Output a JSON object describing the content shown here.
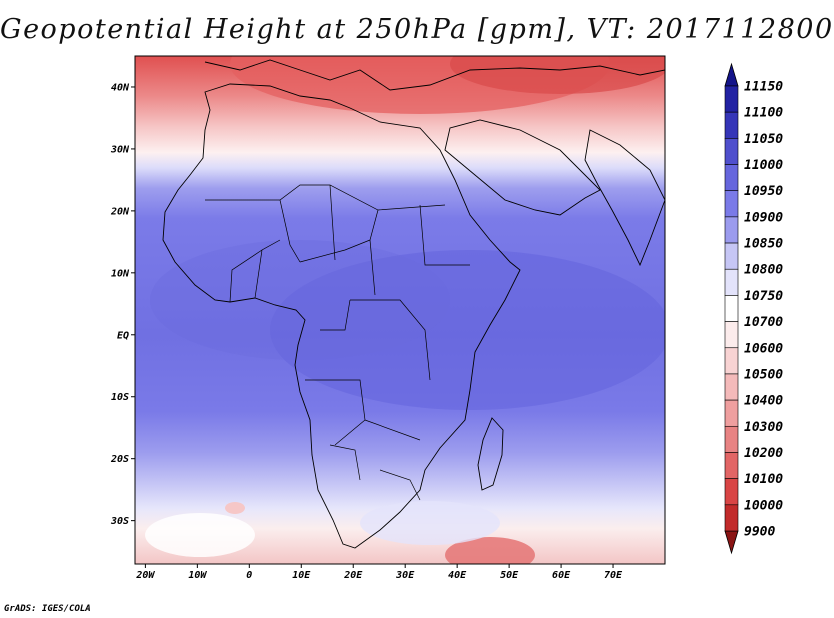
{
  "title": "Geopotential Height at 250hPa [gpm], VT: 2017112800",
  "credit": "GrADS: IGES/COLA",
  "map": {
    "variable": "Geopotential Height at 250hPa",
    "units": "gpm",
    "valid_time": "2017112800",
    "lon_range": [
      -22,
      80
    ],
    "lat_range": [
      -37,
      45
    ],
    "x_ticks": [
      {
        "lon": -20,
        "label": "20W"
      },
      {
        "lon": -10,
        "label": "10W"
      },
      {
        "lon": 0,
        "label": "0"
      },
      {
        "lon": 10,
        "label": "10E"
      },
      {
        "lon": 20,
        "label": "20E"
      },
      {
        "lon": 30,
        "label": "30E"
      },
      {
        "lon": 40,
        "label": "40E"
      },
      {
        "lon": 50,
        "label": "50E"
      },
      {
        "lon": 60,
        "label": "60E"
      },
      {
        "lon": 70,
        "label": "70E"
      }
    ],
    "y_ticks": [
      {
        "lat": 40,
        "label": "40N"
      },
      {
        "lat": 30,
        "label": "30N"
      },
      {
        "lat": 20,
        "label": "20N"
      },
      {
        "lat": 10,
        "label": "10N"
      },
      {
        "lat": 0,
        "label": "EQ"
      },
      {
        "lat": -10,
        "label": "10S"
      },
      {
        "lat": -20,
        "label": "20S"
      },
      {
        "lat": -30,
        "label": "30S"
      }
    ]
  },
  "colorbar": {
    "levels": [
      {
        "label": "9900",
        "color": "#a51c1c"
      },
      {
        "label": "10000",
        "color": "#c22b2b"
      },
      {
        "label": "10100",
        "color": "#d94545"
      },
      {
        "label": "10200",
        "color": "#e26565"
      },
      {
        "label": "10300",
        "color": "#e88383"
      },
      {
        "label": "10400",
        "color": "#ef9f9f"
      },
      {
        "label": "10500",
        "color": "#f4baba"
      },
      {
        "label": "10600",
        "color": "#f8d3d3"
      },
      {
        "label": "10700",
        "color": "#fcecec"
      },
      {
        "label": "10750",
        "color": "#ffffff"
      },
      {
        "label": "10800",
        "color": "#e3e3fb"
      },
      {
        "label": "10850",
        "color": "#c6c6f5"
      },
      {
        "label": "10900",
        "color": "#9b9bee"
      },
      {
        "label": "10950",
        "color": "#7a7ae8"
      },
      {
        "label": "11000",
        "color": "#6666dd"
      },
      {
        "label": "11050",
        "color": "#4f4fcd"
      },
      {
        "label": "11100",
        "color": "#3535b8"
      },
      {
        "label": "11150",
        "color": "#2222a3"
      }
    ],
    "top_color": "#14148a",
    "bottom_color": "#8a1414"
  }
}
